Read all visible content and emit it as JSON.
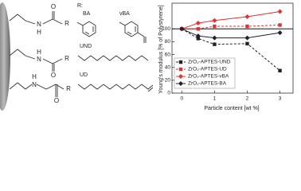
{
  "diagram": {
    "r_title": "R:",
    "groups": [
      "BA",
      "vBA",
      "UND",
      "UD"
    ],
    "rows": [
      [
        "N",
        "H",
        "O",
        "R"
      ],
      [
        "N",
        "H",
        "O",
        "R"
      ],
      [
        "N",
        "H",
        "O",
        "R"
      ]
    ]
  },
  "chart_data": {
    "type": "line",
    "xlabel": "Particle content [wt %]",
    "ylabel": "Young's modulus [% of Polystyrene]",
    "x": [
      0,
      0.5,
      1,
      2,
      3
    ],
    "series": [
      {
        "name": "ZrO₂-APTES-UND",
        "color": "#222222",
        "dash": true,
        "marker": "square",
        "values": [
          100,
          85,
          76,
          77,
          35
        ]
      },
      {
        "name": "ZrO₂-APTES-UD",
        "color": "#e03030",
        "dash": true,
        "marker": "square",
        "values": [
          100,
          100,
          104,
          104,
          106
        ]
      },
      {
        "name": "ZrO₂-APTES-vBA",
        "color": "#e03030",
        "dash": false,
        "marker": "diamond",
        "values": [
          100,
          109,
          113,
          119,
          127
        ]
      },
      {
        "name": "ZrO₂-APTES-BA",
        "color": "#222222",
        "dash": false,
        "marker": "diamond",
        "values": [
          100,
          89,
          86,
          86,
          94
        ]
      }
    ],
    "xlim": [
      -0.3,
      3.4
    ],
    "ylim": [
      0,
      140
    ],
    "xticks": [
      0,
      1,
      2,
      3
    ],
    "yticks": [
      0,
      20,
      40,
      60,
      80,
      100
    ],
    "hline": 100
  }
}
